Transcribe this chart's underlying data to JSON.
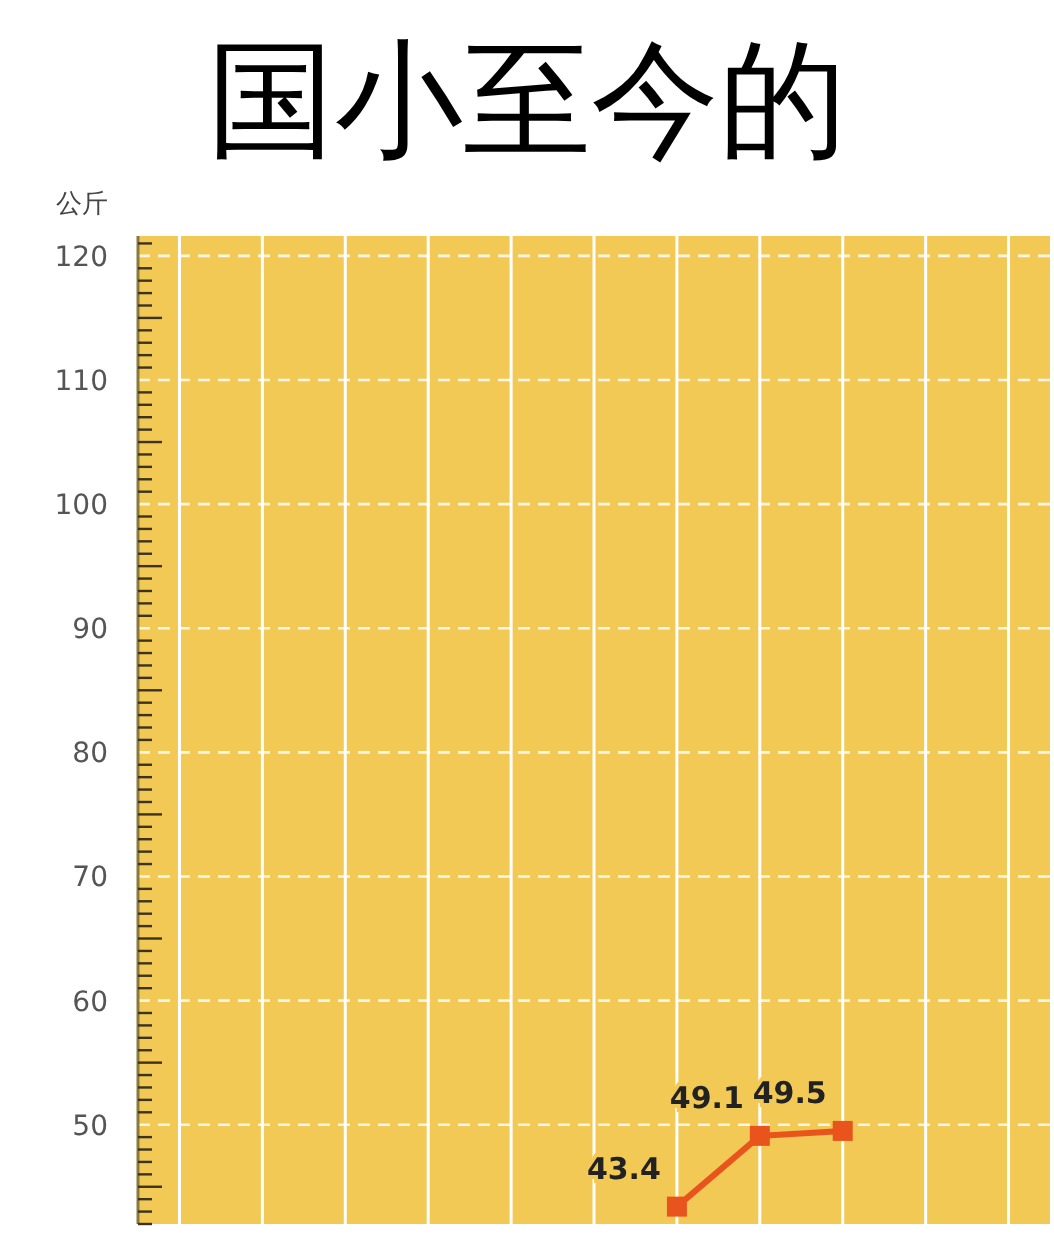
{
  "chart_data": {
    "type": "line",
    "title": "国小至今的",
    "ylabel": "公斤",
    "categories": [
      null,
      null,
      null,
      null,
      null,
      null,
      null,
      null,
      null,
      null,
      null
    ],
    "series": [
      {
        "color": "#e8541c",
        "values": [
          null,
          null,
          null,
          null,
          null,
          null,
          43.4,
          49.1,
          49.5,
          null,
          null
        ]
      }
    ],
    "ylim": [
      42,
      121.6
    ],
    "yticks": [
      50,
      60,
      70,
      80,
      90,
      100,
      110,
      120
    ],
    "data_labels": true,
    "marker": "square",
    "grid": true
  }
}
